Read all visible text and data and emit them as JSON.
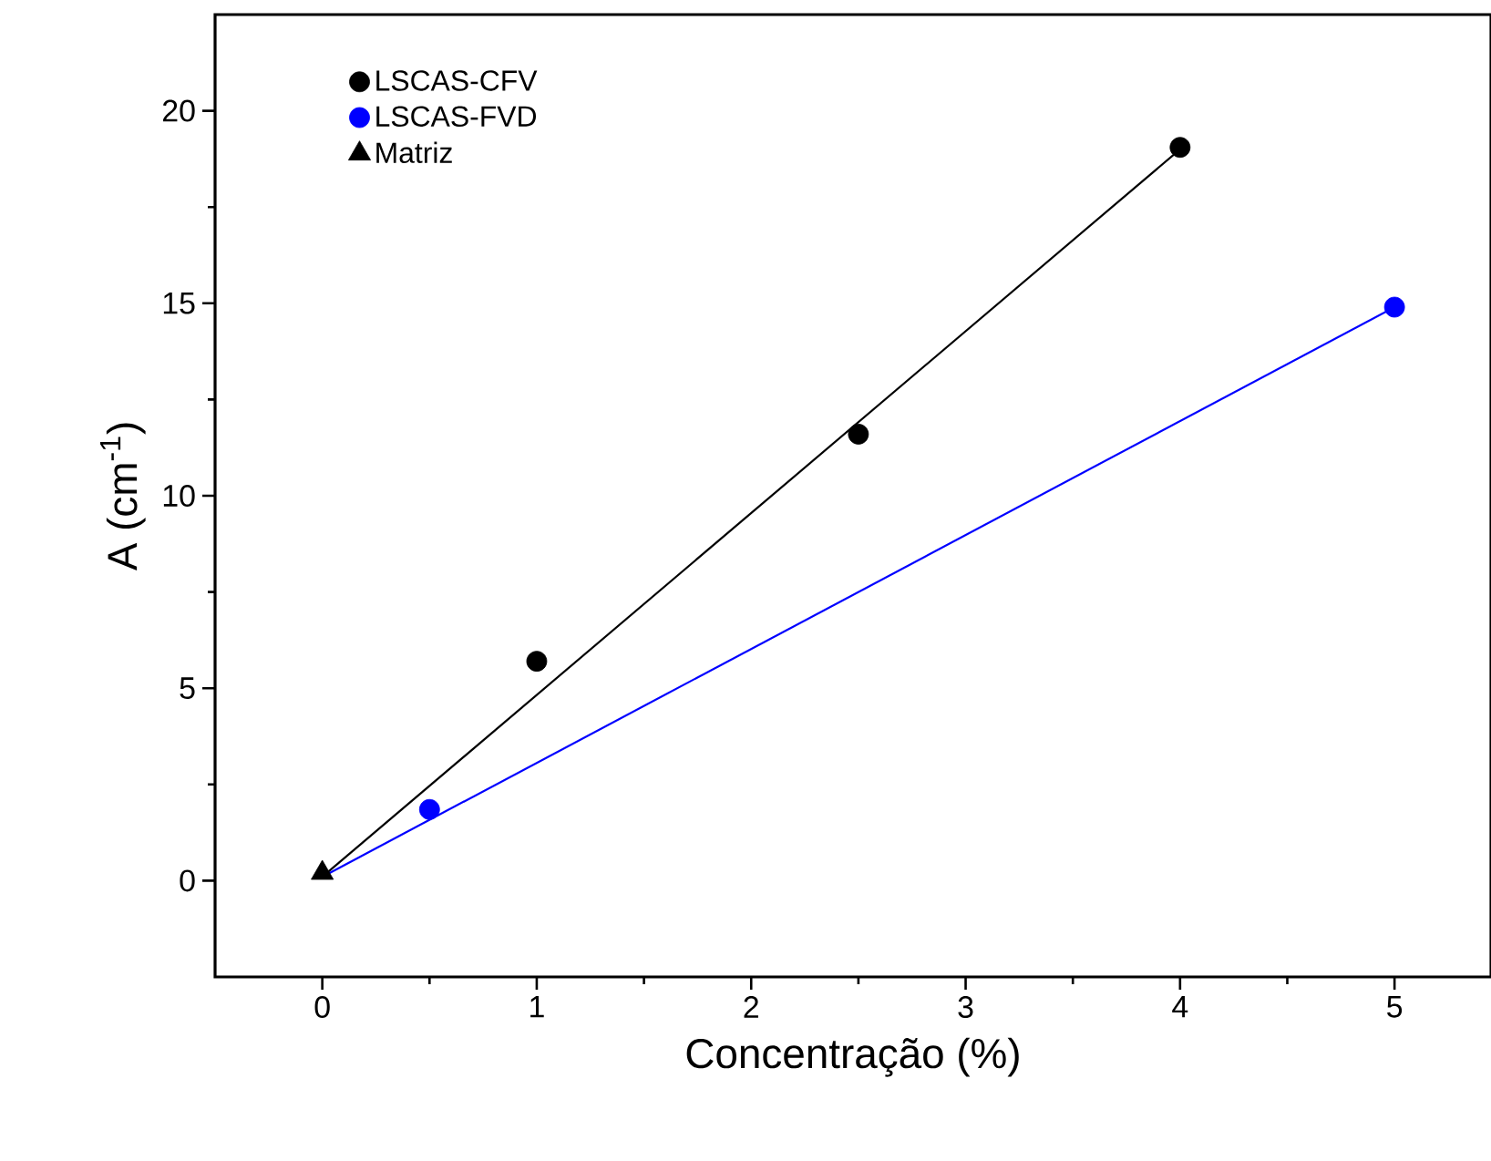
{
  "chart_data": {
    "type": "scatter",
    "xlabel": "Concentração (%)",
    "ylabel": "A (cm$^{-1}$)",
    "xlim": [
      -0.5,
      5.45
    ],
    "ylim": [
      -2.5,
      22.5
    ],
    "xticks": [
      0,
      1,
      2,
      3,
      4,
      5
    ],
    "yticks": [
      0,
      5,
      10,
      15,
      20
    ],
    "legend": "top left",
    "grid": false,
    "marker": "circle",
    "series": [
      {
        "name": "LSCAS-CFV",
        "color": "#000000",
        "x": [
          1,
          2.5,
          4
        ],
        "values": [
          5.7,
          11.6,
          19.05
        ]
      },
      {
        "name": "LSCAS-FVD",
        "color": "#0000ff",
        "x": [
          0.5,
          5
        ],
        "values": [
          1.85,
          14.9
        ]
      },
      {
        "name": "Matriz",
        "marker": "triangle",
        "color": "#000000",
        "x": [
          0
        ],
        "values": [
          0.2
        ]
      },
      {
        "type": "line",
        "marker": "none",
        "color": "#000000",
        "x": [
          0,
          4
        ],
        "values": [
          0.1,
          19.0
        ]
      },
      {
        "type": "line",
        "marker": "none",
        "color": "#0000ff",
        "x": [
          0,
          5
        ],
        "values": [
          0.1,
          14.9
        ]
      }
    ]
  }
}
